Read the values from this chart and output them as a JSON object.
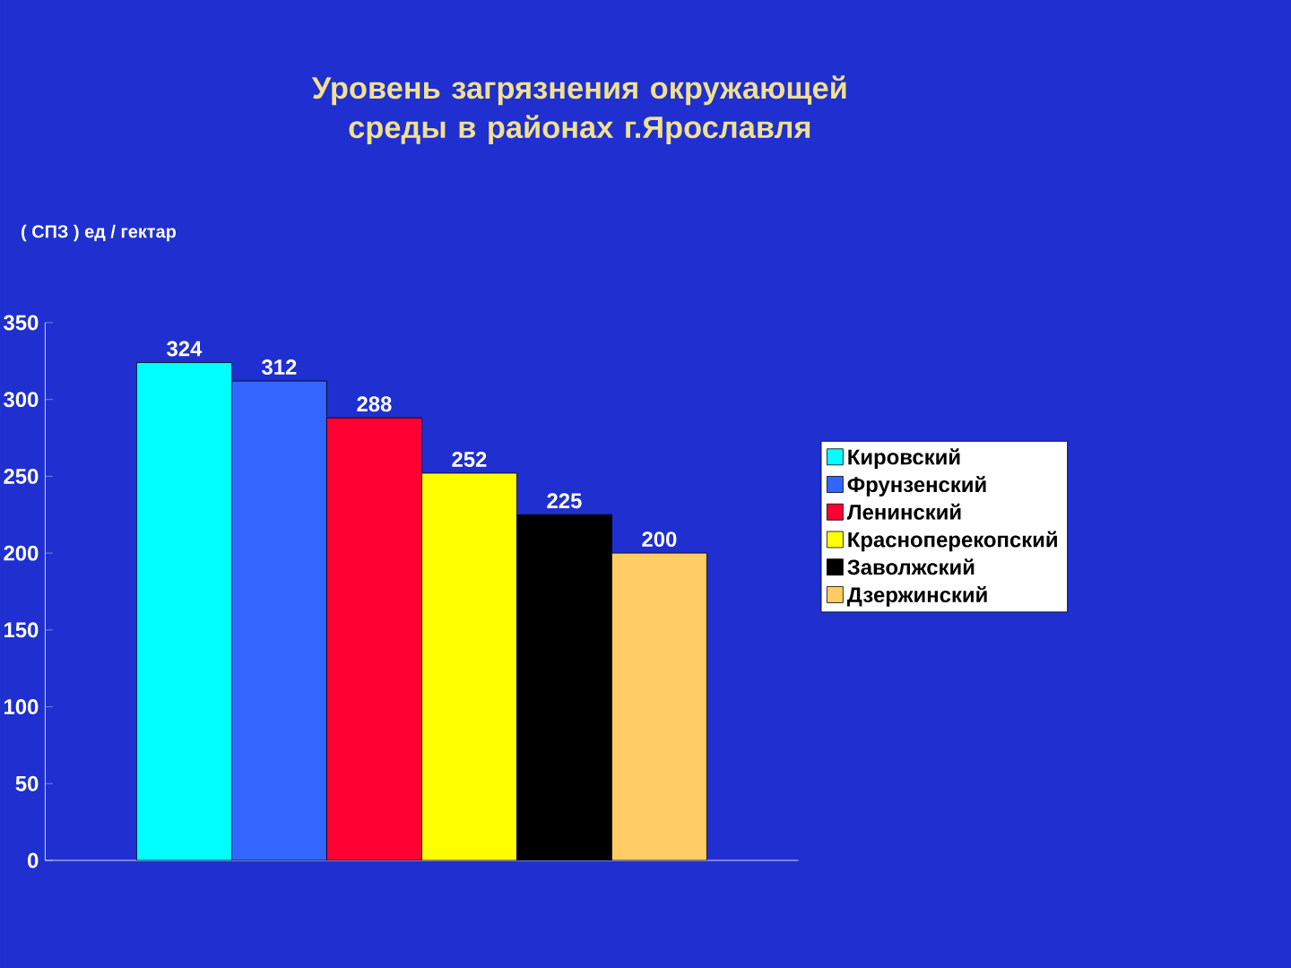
{
  "chart_data": {
    "type": "bar",
    "title": "Уровень загрязнения окружающей среды в районах г.Ярославля",
    "ylabel": "( СПЗ ) ед / гектар",
    "categories": [
      null
    ],
    "series": [
      {
        "name": "Кировский",
        "color": "#00ffff",
        "values": [
          324
        ]
      },
      {
        "name": "Фрунзенский",
        "color": "#3366ff",
        "values": [
          312
        ]
      },
      {
        "name": "Ленинский",
        "color": "#ff0033",
        "values": [
          288
        ]
      },
      {
        "name": "Красноперекопский",
        "color": "#ffff00",
        "values": [
          252
        ]
      },
      {
        "name": "Заволжский",
        "color": "#000000",
        "values": [
          225
        ]
      },
      {
        "name": "Дзержинский",
        "color": "#ffcc66",
        "values": [
          200
        ]
      }
    ],
    "ylim": [
      0,
      350
    ],
    "yticks": [
      0,
      50,
      100,
      150,
      200,
      250,
      300,
      350
    ],
    "legend": "right",
    "data_labels": true
  }
}
